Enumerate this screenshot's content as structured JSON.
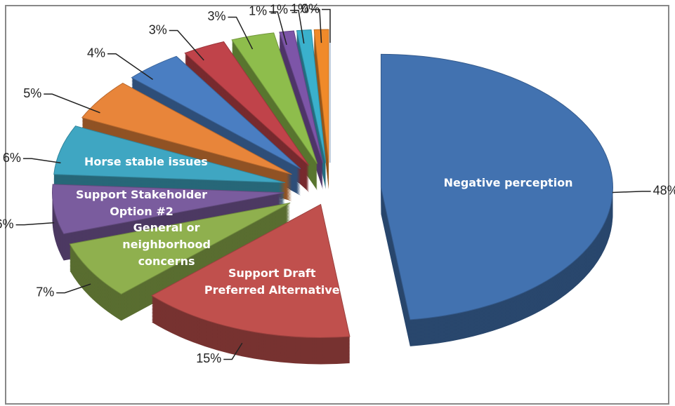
{
  "chart_data": {
    "type": "pie3d",
    "categories": [
      "Negative perception",
      "Support Draft Preferred Alternative",
      "General or neighborhood concerns",
      "Support Stakeholder Option #2",
      "Horse stable issues",
      null,
      null,
      null,
      null,
      null,
      null,
      null,
      null
    ],
    "values": [
      48,
      15,
      7,
      6,
      6,
      5,
      4,
      3,
      3,
      1,
      1,
      1,
      0
    ],
    "value_labels": [
      "48%",
      "15%",
      "7%",
      "6%",
      "6%",
      "5%",
      "4%",
      "3%",
      "3%",
      "1%",
      "1%",
      "1%",
      "0%"
    ],
    "colors": [
      "#4272b0",
      "#c0504d",
      "#8fb04e",
      "#7a5c9e",
      "#3fa6c2",
      "#e8853a",
      "#4a7ec2",
      "#c0434a",
      "#8ebd4c",
      "#7d55a8",
      "#3ab0cc",
      "#f08a2a",
      "#a8c4e8"
    ]
  }
}
